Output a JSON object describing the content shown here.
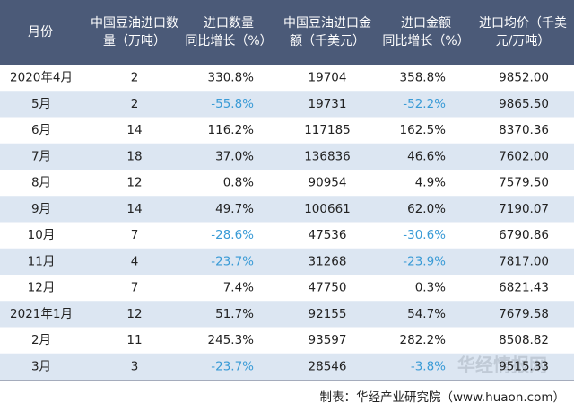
{
  "table": {
    "header": [
      [
        "月份"
      ],
      [
        "中国豆油进口数",
        "量（万吨）"
      ],
      [
        "进口数量",
        "同比增长（%）"
      ],
      [
        "中国豆油进口金",
        "额（千美元）"
      ],
      [
        "进口金额",
        "同比增长（%）"
      ],
      [
        "进口均价（千美",
        "元/万吨）"
      ]
    ],
    "rows": [
      [
        "2020年4月",
        "2",
        "330.8%",
        "19704",
        "358.8%",
        "9852.00"
      ],
      [
        "5月",
        "2",
        "-55.8%",
        "19731",
        "-52.2%",
        "9865.50"
      ],
      [
        "6月",
        "14",
        "116.2%",
        "117185",
        "162.5%",
        "8370.36"
      ],
      [
        "7月",
        "18",
        "37.0%",
        "136836",
        "46.6%",
        "7602.00"
      ],
      [
        "8月",
        "12",
        "0.8%",
        "90954",
        "4.9%",
        "7579.50"
      ],
      [
        "9月",
        "14",
        "49.7%",
        "100661",
        "62.0%",
        "7190.07"
      ],
      [
        "10月",
        "7",
        "-28.6%",
        "47536",
        "-30.6%",
        "6790.86"
      ],
      [
        "11月",
        "4",
        "-23.7%",
        "31268",
        "-23.9%",
        "7817.00"
      ],
      [
        "12月",
        "7",
        "7.4%",
        "47750",
        "0.3%",
        "6821.43"
      ],
      [
        "2021年1月",
        "12",
        "51.7%",
        "92155",
        "54.7%",
        "7679.58"
      ],
      [
        "2月",
        "11",
        "245.3%",
        "93597",
        "282.2%",
        "8508.82"
      ],
      [
        "3月",
        "3",
        "-23.7%",
        "28546",
        "-3.8%",
        "9515.33"
      ]
    ]
  },
  "watermark": "华经情报网",
  "footer": "制表：华经产业研究院（www.huaon.com）"
}
